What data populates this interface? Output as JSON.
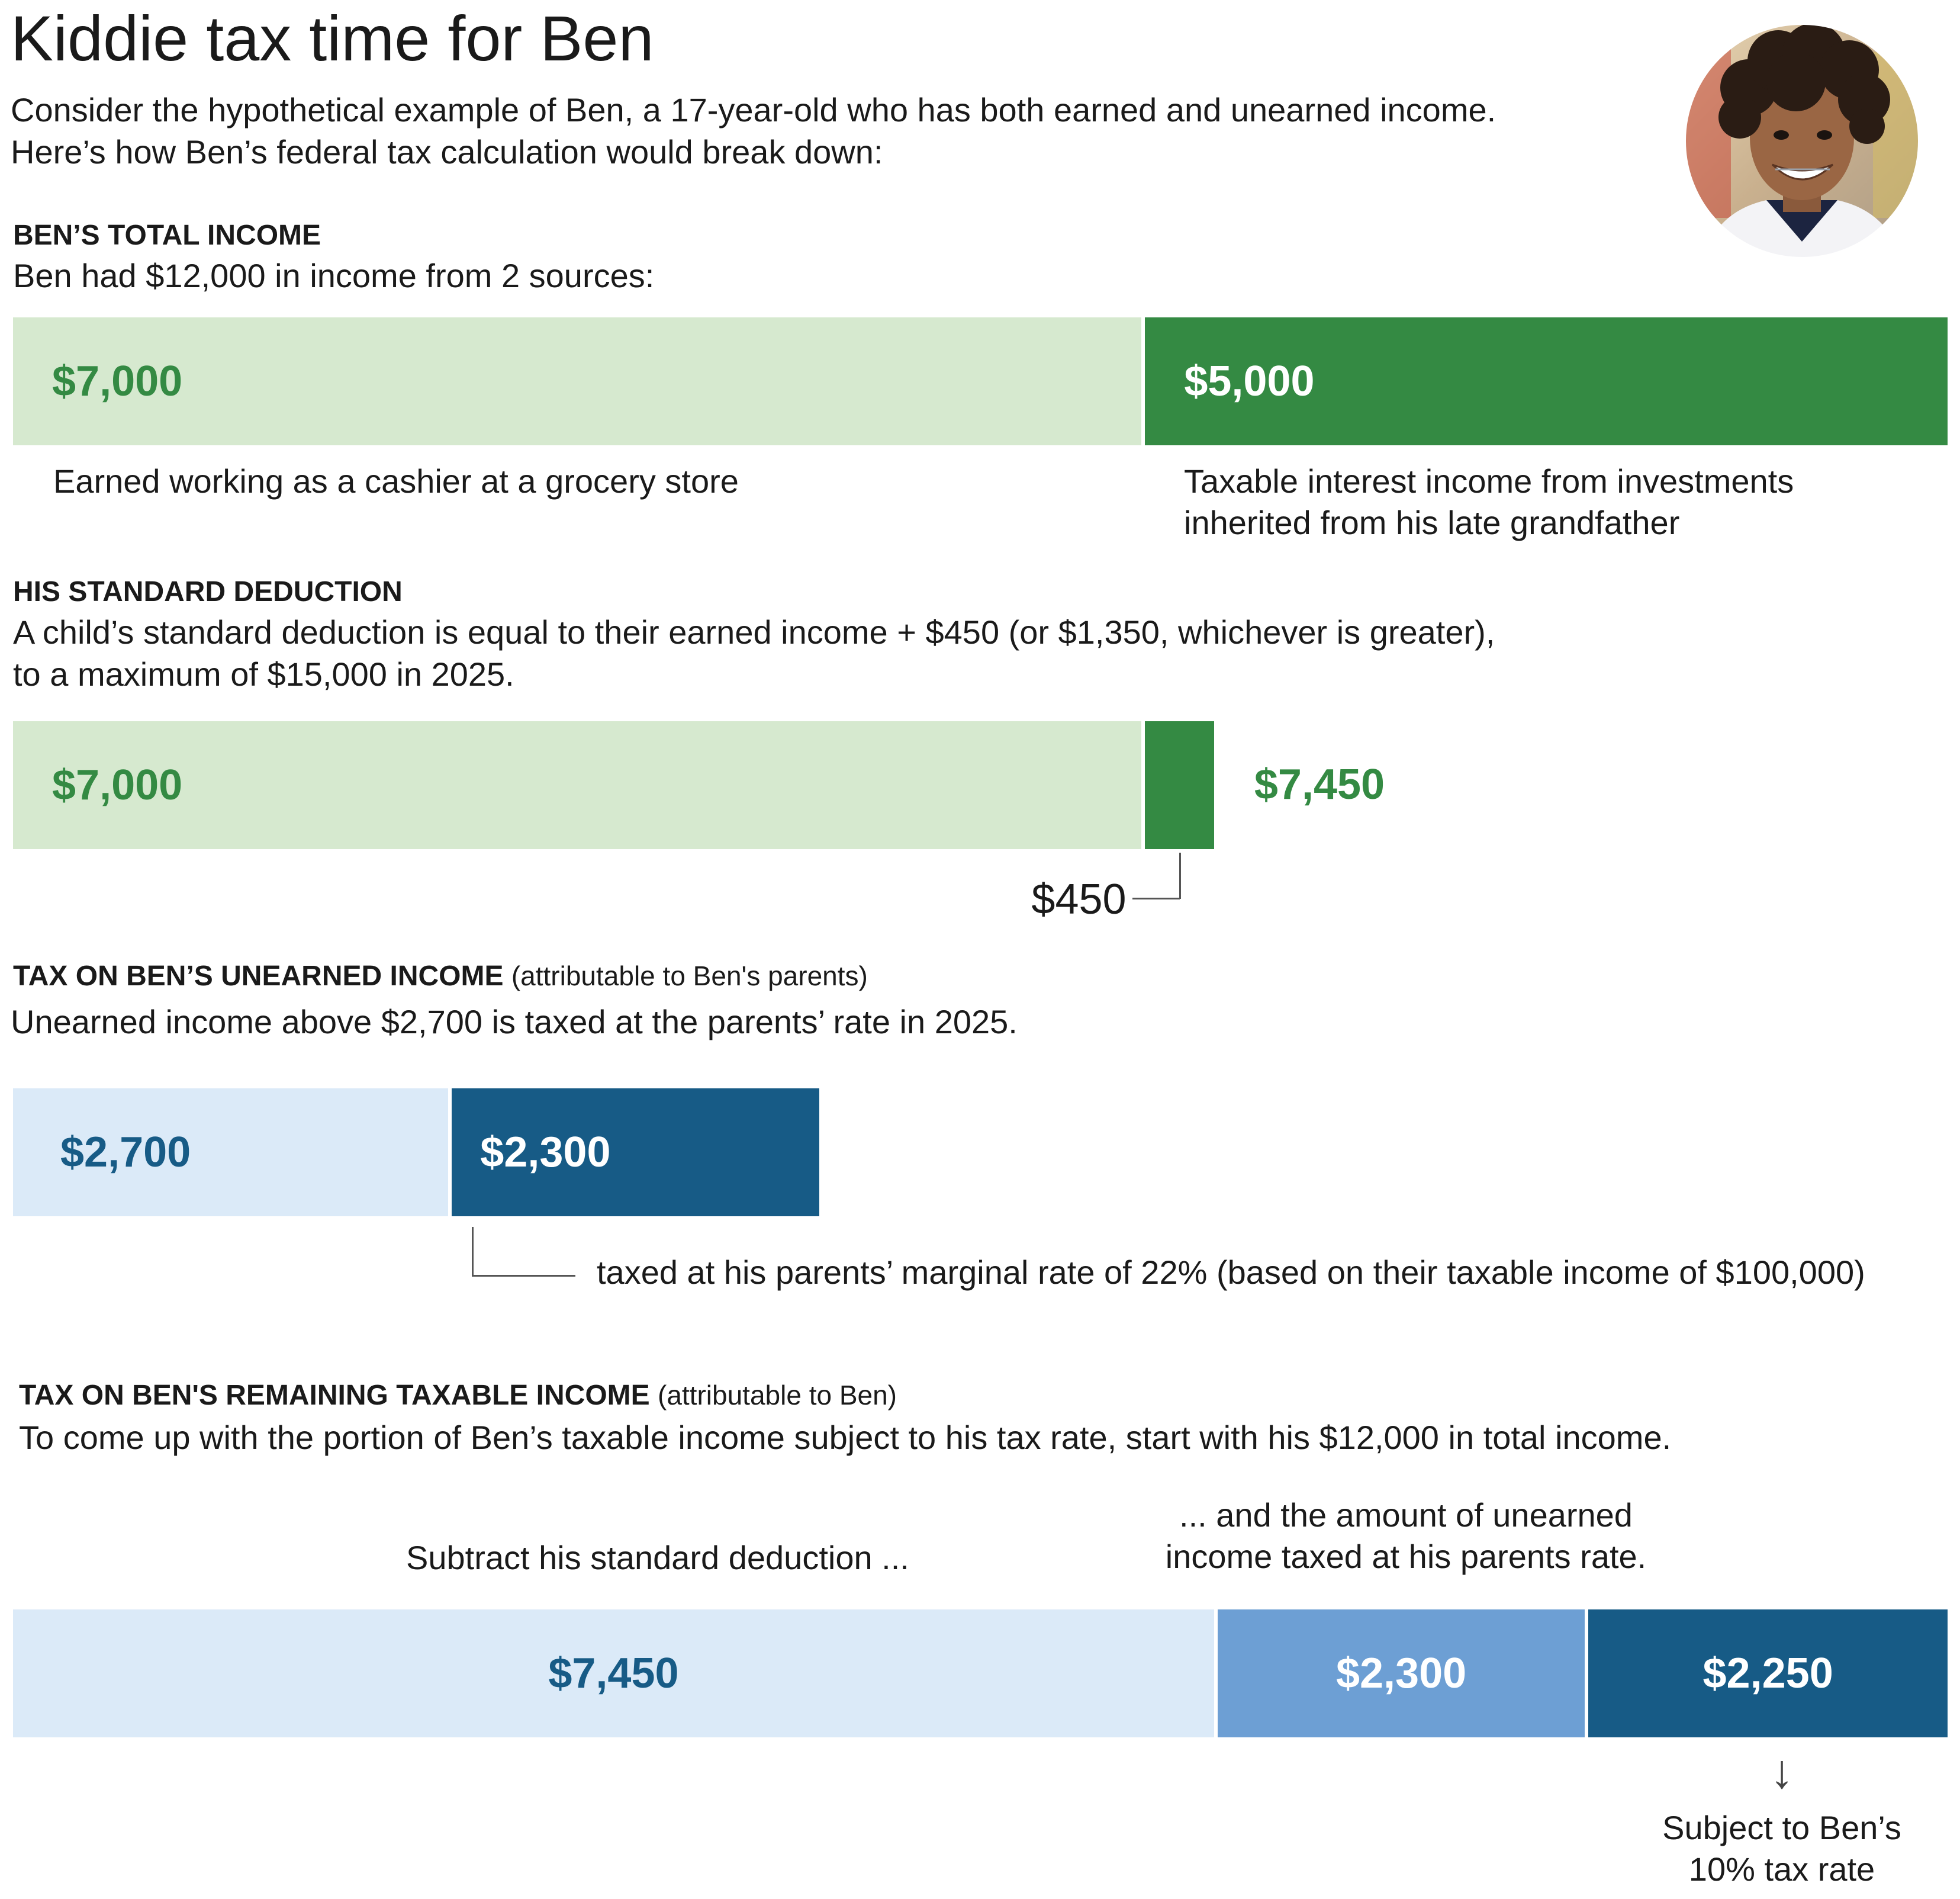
{
  "header": {
    "title": "Kiddie tax time for Ben",
    "intro_line1": "Consider the hypothetical example of Ben, a 17-year-old who has both earned and unearned income.",
    "intro_line2": "Here’s how Ben’s federal tax calculation would break down:"
  },
  "sections": {
    "total_income": {
      "heading": "BEN’S TOTAL INCOME",
      "desc": "Ben had $12,000 in income from 2 sources:",
      "earned_caption": "Earned working as a cashier at a grocery store",
      "unearned_caption_line1": "Taxable interest income from investments",
      "unearned_caption_line2": "inherited from his late grandfather"
    },
    "standard_deduction": {
      "heading": "HIS STANDARD DEDUCTION",
      "desc_line1": "A child’s standard deduction is equal to their earned income + $450 (or $1,350, whichever is greater),",
      "desc_line2": "to a maximum of $15,000 in 2025.",
      "total_label": "$7,450",
      "callout_label": "$450"
    },
    "unearned_tax": {
      "heading": "TAX ON BEN’S UNEARNED INCOME",
      "heading_note": "(attributable to Ben's parents)",
      "desc": "Unearned income above $2,700 is taxed at the parents’ rate in 2025.",
      "callout": "taxed at his parents’ marginal rate of 22% (based on their taxable income of $100,000)"
    },
    "remaining_tax": {
      "heading": "TAX ON BEN'S REMAINING TAXABLE INCOME",
      "heading_note": "(attributable to Ben)",
      "desc": "To come up with the portion of Ben’s taxable income subject to his tax rate, start with his $12,000 in total income.",
      "subtract_caption": "Subtract his standard deduction ...",
      "parents_caption_line1": "... and the amount of unearned",
      "parents_caption_line2": "income taxed at his parents rate.",
      "arrow_glyph": "↓",
      "subject_caption_line1": "Subject to Ben’s",
      "subject_caption_line2": "10% tax rate"
    }
  },
  "colors": {
    "light_green": "#d6e9cf",
    "dark_green": "#348a43",
    "light_blue": "#dbeaf8",
    "mid_blue": "#6d9fd4",
    "dark_blue": "#175b86"
  },
  "chart_data": [
    {
      "type": "bar",
      "orientation": "horizontal-stacked",
      "name": "total_income",
      "segments": [
        {
          "label": "$7,000",
          "value": 7000
        },
        {
          "label": "$5,000",
          "value": 5000
        }
      ]
    },
    {
      "type": "bar",
      "orientation": "horizontal-stacked",
      "name": "standard_deduction",
      "segments": [
        {
          "label": "$7,000",
          "value": 7000
        },
        {
          "label": "$450",
          "value": 450
        }
      ],
      "total": 7450
    },
    {
      "type": "bar",
      "orientation": "horizontal-stacked",
      "name": "unearned_income",
      "segments": [
        {
          "label": "$2,700",
          "value": 2700
        },
        {
          "label": "$2,300",
          "value": 2300
        }
      ]
    },
    {
      "type": "bar",
      "orientation": "horizontal-stacked",
      "name": "remaining_taxable_income",
      "segments": [
        {
          "label": "$7,450",
          "value": 7450
        },
        {
          "label": "$2,300",
          "value": 2300
        },
        {
          "label": "$2,250",
          "value": 2250
        }
      ]
    }
  ]
}
